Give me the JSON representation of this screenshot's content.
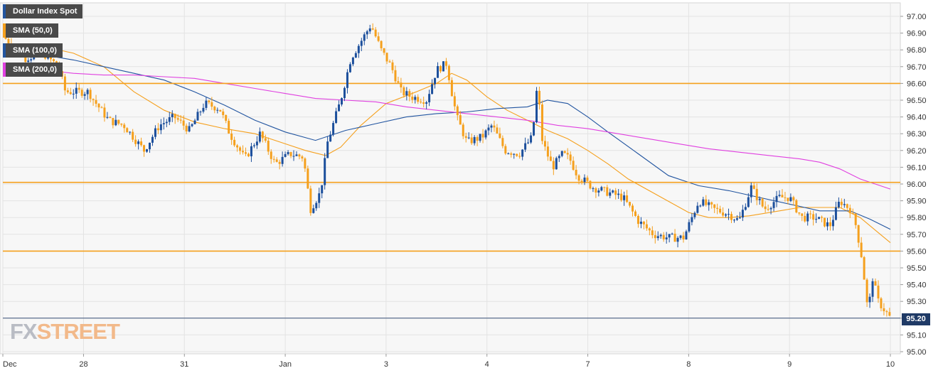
{
  "legend": {
    "instrument": "Dollar Index Spot",
    "sma50": "SMA (50,0)",
    "sma100": "SMA (100,0)",
    "sma200": "SMA (200,0)"
  },
  "logo": {
    "part1": "FX",
    "part2": "STREET"
  },
  "colors": {
    "candle_up": "#1c4f9c",
    "candle_down": "#f5a01d",
    "sma50": "#f5a01d",
    "sma100": "#2255a0",
    "sma200": "#e040e0",
    "levels": "#f5a01d",
    "price_line": "#1f3a66"
  },
  "chart_data": {
    "type": "candlestick",
    "title": "Dollar Index Spot",
    "ylim": [
      95.0,
      97.05
    ],
    "y_ticks": [
      "97.00",
      "96.90",
      "96.80",
      "96.70",
      "96.60",
      "96.50",
      "96.40",
      "96.30",
      "96.20",
      "96.10",
      "96.00",
      "95.90",
      "95.80",
      "95.70",
      "95.60",
      "95.50",
      "95.40",
      "95.30",
      "95.20",
      "95.10",
      "95.00"
    ],
    "x_ticks": [
      "Dec",
      "28",
      "31",
      "Jan",
      "3",
      "4",
      "7",
      "8",
      "9",
      "10"
    ],
    "x_tick_positions": [
      0,
      0.8,
      1.8,
      2.8,
      3.8,
      4.8,
      5.8,
      6.8,
      7.8,
      8.8
    ],
    "x_range": [
      0,
      8.8
    ],
    "grid": true,
    "horizontal_levels": [
      96.6,
      96.01,
      95.6
    ],
    "current_price": 95.2,
    "price_path": [
      [
        0.0,
        96.88
      ],
      [
        0.12,
        96.82
      ],
      [
        0.22,
        96.75
      ],
      [
        0.4,
        96.78
      ],
      [
        0.55,
        96.7
      ],
      [
        0.62,
        96.55
      ],
      [
        0.75,
        96.55
      ],
      [
        0.85,
        96.55
      ],
      [
        0.9,
        96.5
      ],
      [
        1.05,
        96.38
      ],
      [
        1.2,
        96.35
      ],
      [
        1.4,
        96.2
      ],
      [
        1.55,
        96.35
      ],
      [
        1.7,
        96.4
      ],
      [
        1.85,
        96.32
      ],
      [
        2.0,
        96.48
      ],
      [
        2.15,
        96.45
      ],
      [
        2.25,
        96.3
      ],
      [
        2.4,
        96.15
      ],
      [
        2.55,
        96.3
      ],
      [
        2.7,
        96.12
      ],
      [
        2.85,
        96.18
      ],
      [
        2.98,
        96.16
      ],
      [
        3.05,
        95.85
      ],
      [
        3.15,
        95.95
      ],
      [
        3.22,
        96.25
      ],
      [
        3.35,
        96.5
      ],
      [
        3.45,
        96.75
      ],
      [
        3.55,
        96.85
      ],
      [
        3.65,
        96.95
      ],
      [
        3.75,
        96.8
      ],
      [
        3.85,
        96.7
      ],
      [
        3.95,
        96.55
      ],
      [
        4.05,
        96.52
      ],
      [
        4.2,
        96.5
      ],
      [
        4.3,
        96.68
      ],
      [
        4.4,
        96.72
      ],
      [
        4.45,
        96.55
      ],
      [
        4.5,
        96.4
      ],
      [
        4.6,
        96.25
      ],
      [
        4.75,
        96.28
      ],
      [
        4.85,
        96.35
      ],
      [
        4.98,
        96.2
      ],
      [
        5.12,
        96.18
      ],
      [
        5.25,
        96.28
      ],
      [
        5.3,
        96.6
      ],
      [
        5.35,
        96.25
      ],
      [
        5.45,
        96.1
      ],
      [
        5.55,
        96.18
      ],
      [
        5.62,
        96.15
      ],
      [
        5.7,
        96.05
      ],
      [
        5.85,
        95.98
      ],
      [
        6.0,
        95.95
      ],
      [
        6.15,
        95.92
      ],
      [
        6.3,
        95.78
      ],
      [
        6.45,
        95.7
      ],
      [
        6.6,
        95.68
      ],
      [
        6.75,
        95.68
      ],
      [
        6.9,
        95.9
      ],
      [
        7.05,
        95.85
      ],
      [
        7.2,
        95.82
      ],
      [
        7.3,
        95.78
      ],
      [
        7.42,
        95.98
      ],
      [
        7.55,
        95.85
      ],
      [
        7.7,
        95.92
      ],
      [
        7.8,
        95.92
      ],
      [
        7.92,
        95.8
      ],
      [
        8.05,
        95.8
      ],
      [
        8.2,
        95.75
      ],
      [
        8.3,
        95.9
      ],
      [
        8.4,
        95.85
      ],
      [
        8.46,
        95.75
      ],
      [
        8.52,
        95.55
      ],
      [
        8.58,
        95.22
      ],
      [
        8.62,
        95.45
      ],
      [
        8.68,
        95.3
      ],
      [
        8.74,
        95.25
      ],
      [
        8.8,
        95.2
      ]
    ],
    "series": [
      {
        "name": "SMA (50,0)",
        "color": "#f5a01d",
        "points": [
          [
            0.4,
            96.82
          ],
          [
            0.7,
            96.78
          ],
          [
            1.0,
            96.7
          ],
          [
            1.3,
            96.55
          ],
          [
            1.6,
            96.44
          ],
          [
            1.9,
            96.37
          ],
          [
            2.2,
            96.33
          ],
          [
            2.5,
            96.3
          ],
          [
            2.8,
            96.24
          ],
          [
            3.0,
            96.2
          ],
          [
            3.2,
            96.17
          ],
          [
            3.35,
            96.22
          ],
          [
            3.55,
            96.35
          ],
          [
            3.8,
            96.48
          ],
          [
            4.1,
            96.55
          ],
          [
            4.3,
            96.6
          ],
          [
            4.45,
            96.66
          ],
          [
            4.6,
            96.62
          ],
          [
            4.8,
            96.52
          ],
          [
            5.0,
            96.44
          ],
          [
            5.2,
            96.38
          ],
          [
            5.4,
            96.32
          ],
          [
            5.6,
            96.27
          ],
          [
            5.8,
            96.2
          ],
          [
            6.0,
            96.12
          ],
          [
            6.2,
            96.03
          ],
          [
            6.5,
            95.93
          ],
          [
            6.8,
            95.83
          ],
          [
            7.0,
            95.8
          ],
          [
            7.2,
            95.8
          ],
          [
            7.4,
            95.81
          ],
          [
            7.7,
            95.84
          ],
          [
            7.9,
            95.86
          ],
          [
            8.1,
            95.86
          ],
          [
            8.3,
            95.86
          ],
          [
            8.5,
            95.8
          ],
          [
            8.7,
            95.7
          ],
          [
            8.8,
            95.65
          ]
        ]
      },
      {
        "name": "SMA (100,0)",
        "color": "#2255a0",
        "points": [
          [
            0.4,
            96.77
          ],
          [
            0.7,
            96.74
          ],
          [
            1.0,
            96.7
          ],
          [
            1.3,
            96.66
          ],
          [
            1.6,
            96.62
          ],
          [
            1.9,
            96.55
          ],
          [
            2.2,
            96.47
          ],
          [
            2.5,
            96.38
          ],
          [
            2.8,
            96.31
          ],
          [
            3.1,
            96.26
          ],
          [
            3.4,
            96.32
          ],
          [
            3.7,
            96.36
          ],
          [
            4.0,
            96.4
          ],
          [
            4.3,
            96.42
          ],
          [
            4.6,
            96.43
          ],
          [
            4.9,
            96.45
          ],
          [
            5.2,
            96.46
          ],
          [
            5.4,
            96.5
          ],
          [
            5.6,
            96.48
          ],
          [
            5.8,
            96.4
          ],
          [
            6.0,
            96.31
          ],
          [
            6.3,
            96.18
          ],
          [
            6.6,
            96.05
          ],
          [
            6.9,
            95.99
          ],
          [
            7.2,
            95.96
          ],
          [
            7.5,
            95.92
          ],
          [
            7.8,
            95.88
          ],
          [
            8.1,
            95.84
          ],
          [
            8.4,
            95.84
          ],
          [
            8.6,
            95.79
          ],
          [
            8.8,
            95.73
          ]
        ]
      },
      {
        "name": "SMA (200,0)",
        "color": "#e040e0",
        "points": [
          [
            0.4,
            96.68
          ],
          [
            0.7,
            96.66
          ],
          [
            1.0,
            96.65
          ],
          [
            1.3,
            96.65
          ],
          [
            1.6,
            96.64
          ],
          [
            1.9,
            96.63
          ],
          [
            2.2,
            96.6
          ],
          [
            2.5,
            96.57
          ],
          [
            2.8,
            96.54
          ],
          [
            3.1,
            96.51
          ],
          [
            3.4,
            96.5
          ],
          [
            3.7,
            96.49
          ],
          [
            4.0,
            96.46
          ],
          [
            4.3,
            96.44
          ],
          [
            4.6,
            96.42
          ],
          [
            4.9,
            96.4
          ],
          [
            5.2,
            96.38
          ],
          [
            5.5,
            96.35
          ],
          [
            5.8,
            96.33
          ],
          [
            6.1,
            96.3
          ],
          [
            6.4,
            96.27
          ],
          [
            6.7,
            96.24
          ],
          [
            7.0,
            96.21
          ],
          [
            7.3,
            96.19
          ],
          [
            7.6,
            96.17
          ],
          [
            7.9,
            96.15
          ],
          [
            8.1,
            96.13
          ],
          [
            8.3,
            96.09
          ],
          [
            8.5,
            96.03
          ],
          [
            8.8,
            95.97
          ]
        ]
      }
    ]
  }
}
